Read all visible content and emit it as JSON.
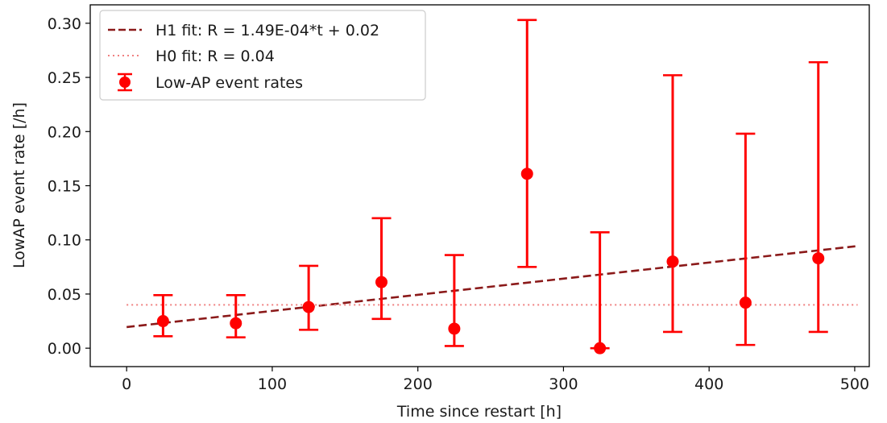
{
  "chart_data": {
    "type": "scatter",
    "title": "",
    "xlabel": "Time since restart [h]",
    "ylabel": "LowAP event rate [/h]",
    "xlim": [
      -25,
      510
    ],
    "ylim": [
      -0.017,
      0.317
    ],
    "xticks": [
      0,
      100,
      200,
      300,
      400,
      500
    ],
    "yticks": [
      0.0,
      0.05,
      0.1,
      0.15,
      0.2,
      0.25,
      0.3
    ],
    "xtick_labels": [
      "0",
      "100",
      "200",
      "300",
      "400",
      "500"
    ],
    "ytick_labels": [
      "0.00",
      "0.05",
      "0.10",
      "0.15",
      "0.20",
      "0.25",
      "0.30"
    ],
    "grid": false,
    "legend_position": "top-left",
    "series": [
      {
        "name": "Low-AP event rates",
        "kind": "errorbar",
        "color": "#ff0000",
        "x": [
          25,
          75,
          125,
          175,
          225,
          275,
          325,
          375,
          425,
          475
        ],
        "y": [
          0.025,
          0.023,
          0.038,
          0.061,
          0.018,
          0.161,
          0.0,
          0.08,
          0.042,
          0.083
        ],
        "y_lower": [
          0.011,
          0.01,
          0.017,
          0.027,
          0.002,
          0.075,
          0.0,
          0.015,
          0.003,
          0.015
        ],
        "y_upper": [
          0.049,
          0.049,
          0.076,
          0.12,
          0.086,
          0.303,
          0.107,
          0.252,
          0.198,
          0.264
        ]
      },
      {
        "name": "H1 fit: R = 1.49E-04*t + 0.02",
        "kind": "line",
        "style": "dashed",
        "color": "#8b1a1a",
        "x": [
          0,
          502
        ],
        "y": [
          0.0195,
          0.0943
        ]
      },
      {
        "name": "H0 fit: R = 0.04",
        "kind": "line",
        "style": "dotted",
        "color": "#f08080",
        "x": [
          0,
          502
        ],
        "y": [
          0.04,
          0.04
        ]
      }
    ],
    "legend": [
      "H1 fit: R = 1.49E-04*t + 0.02",
      "H0 fit: R = 0.04",
      "Low-AP event rates"
    ]
  }
}
